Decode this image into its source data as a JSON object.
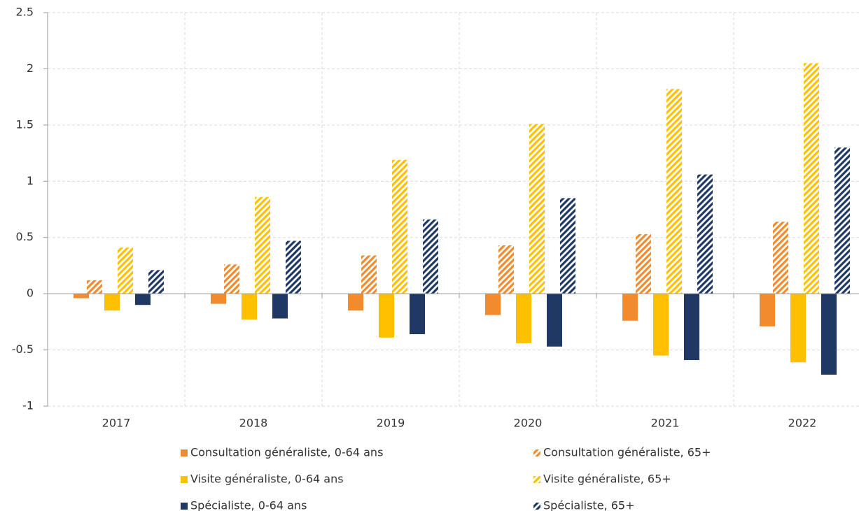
{
  "chart_data": {
    "type": "bar",
    "categories": [
      "2017",
      "2018",
      "2019",
      "2020",
      "2021",
      "2022"
    ],
    "series": [
      {
        "name": "Consultation généraliste, 0-64 ans",
        "color": "#f28a2e",
        "hatch": false,
        "values": [
          -0.04,
          -0.09,
          -0.15,
          -0.19,
          -0.24,
          -0.29
        ]
      },
      {
        "name": "Consultation généraliste, 65+",
        "color": "#f28a2e",
        "hatch": true,
        "values": [
          0.12,
          0.26,
          0.34,
          0.43,
          0.53,
          0.64
        ]
      },
      {
        "name": "Visite généraliste, 0-64 ans",
        "color": "#ffc000",
        "hatch": false,
        "values": [
          -0.15,
          -0.23,
          -0.39,
          -0.44,
          -0.55,
          -0.61
        ]
      },
      {
        "name": "Visite généraliste, 65+",
        "color": "#ffc000",
        "hatch": true,
        "values": [
          0.41,
          0.86,
          1.19,
          1.51,
          1.82,
          2.05
        ]
      },
      {
        "name": "Spécialiste, 0-64 ans",
        "color": "#1f3864",
        "hatch": false,
        "values": [
          -0.1,
          -0.22,
          -0.36,
          -0.47,
          -0.59,
          -0.72
        ]
      },
      {
        "name": "Spécialiste, 65+",
        "color": "#1f3864",
        "hatch": true,
        "values": [
          0.21,
          0.47,
          0.66,
          0.85,
          1.06,
          1.3
        ]
      }
    ],
    "ylim": [
      -1,
      2.5
    ],
    "yticks": [
      -1,
      -0.5,
      0,
      0.5,
      1,
      1.5,
      2,
      2.5
    ],
    "grid": true
  }
}
